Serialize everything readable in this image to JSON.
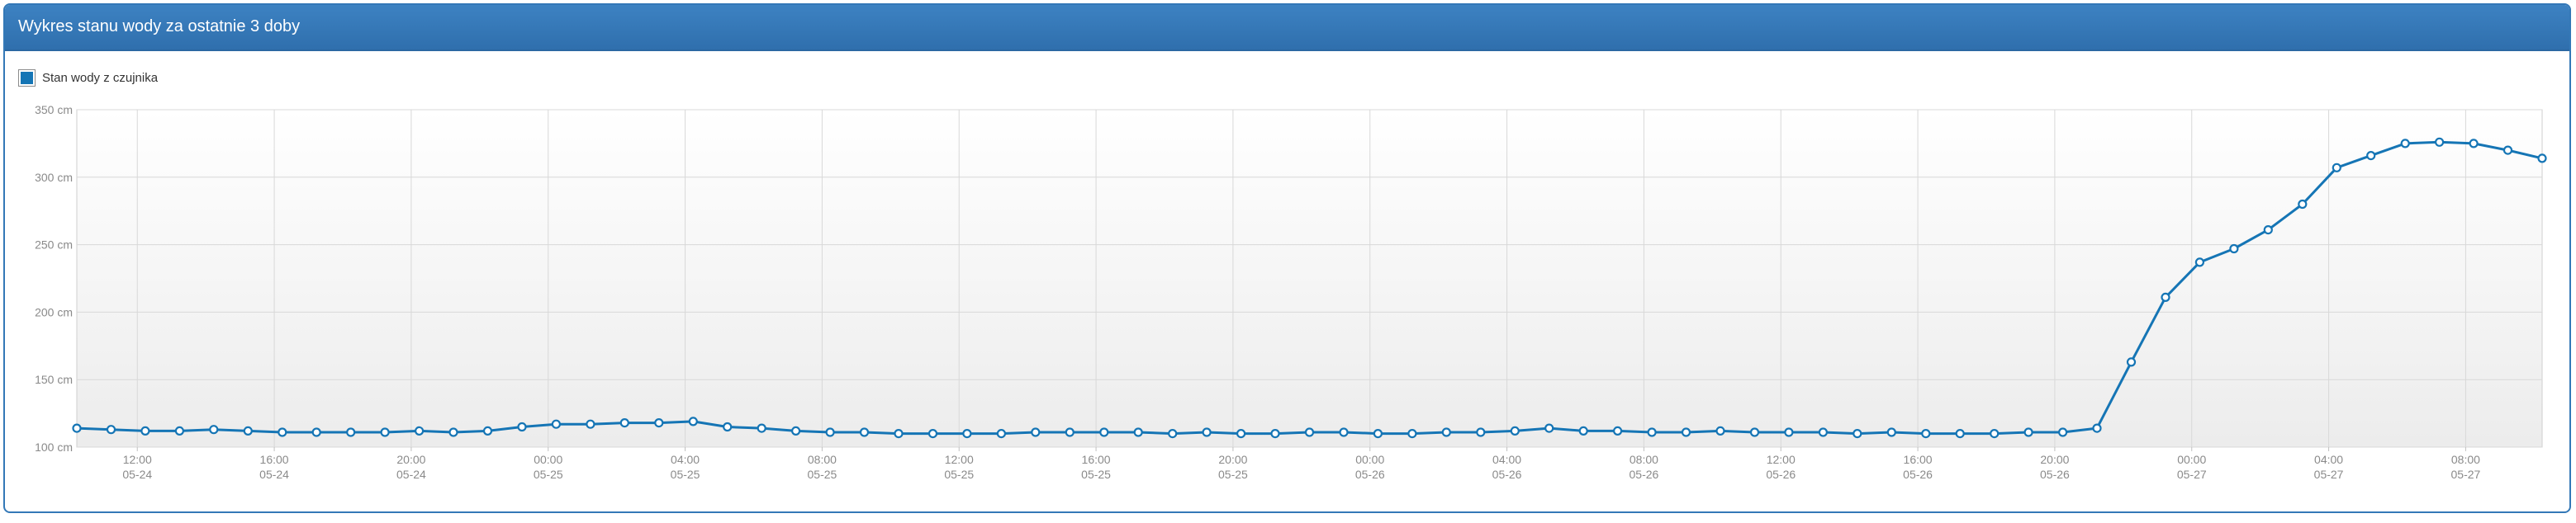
{
  "panel": {
    "title": "Wykres stanu wody za ostatnie 3 doby"
  },
  "colors": {
    "header": "#3378b7",
    "series": "#1575b5",
    "grid": "#d8d8d8"
  },
  "chart_data": {
    "type": "line",
    "title": "",
    "xlabel": "",
    "ylabel": "",
    "unit": "cm",
    "ylim": [
      100,
      350
    ],
    "y_ticks": [
      {
        "value": 100,
        "label": "100 cm"
      },
      {
        "value": 150,
        "label": "150 cm"
      },
      {
        "value": 200,
        "label": "200 cm"
      },
      {
        "value": 250,
        "label": "250 cm"
      },
      {
        "value": 300,
        "label": "300 cm"
      },
      {
        "value": 350,
        "label": "350 cm"
      }
    ],
    "x_range": [
      "2023-05-24 10:14",
      "2023-05-27 10:14"
    ],
    "x_ticks": [
      {
        "at": "2023-05-24 12:00",
        "time": "12:00",
        "date": "05-24"
      },
      {
        "at": "2023-05-24 16:00",
        "time": "16:00",
        "date": "05-24"
      },
      {
        "at": "2023-05-24 20:00",
        "time": "20:00",
        "date": "05-24"
      },
      {
        "at": "2023-05-25 00:00",
        "time": "00:00",
        "date": "05-25"
      },
      {
        "at": "2023-05-25 04:00",
        "time": "04:00",
        "date": "05-25"
      },
      {
        "at": "2023-05-25 08:00",
        "time": "08:00",
        "date": "05-25"
      },
      {
        "at": "2023-05-25 12:00",
        "time": "12:00",
        "date": "05-25"
      },
      {
        "at": "2023-05-25 16:00",
        "time": "16:00",
        "date": "05-25"
      },
      {
        "at": "2023-05-25 20:00",
        "time": "20:00",
        "date": "05-25"
      },
      {
        "at": "2023-05-26 00:00",
        "time": "00:00",
        "date": "05-26"
      },
      {
        "at": "2023-05-26 04:00",
        "time": "04:00",
        "date": "05-26"
      },
      {
        "at": "2023-05-26 08:00",
        "time": "08:00",
        "date": "05-26"
      },
      {
        "at": "2023-05-26 12:00",
        "time": "12:00",
        "date": "05-26"
      },
      {
        "at": "2023-05-26 16:00",
        "time": "16:00",
        "date": "05-26"
      },
      {
        "at": "2023-05-26 20:00",
        "time": "20:00",
        "date": "05-26"
      },
      {
        "at": "2023-05-27 00:00",
        "time": "00:00",
        "date": "05-27"
      },
      {
        "at": "2023-05-27 04:00",
        "time": "04:00",
        "date": "05-27"
      },
      {
        "at": "2023-05-27 08:00",
        "time": "08:00",
        "date": "05-27"
      }
    ],
    "grid": true,
    "legend_position": "top-left",
    "series": [
      {
        "name": "Stan wody z czujnika",
        "x_start": "2023-05-24 10:14",
        "x_step_minutes": 60,
        "values": [
          114,
          113,
          112,
          112,
          113,
          112,
          111,
          111,
          111,
          111,
          112,
          111,
          112,
          115,
          117,
          117,
          118,
          118,
          119,
          115,
          114,
          112,
          111,
          111,
          110,
          110,
          110,
          110,
          111,
          111,
          111,
          111,
          110,
          111,
          110,
          110,
          111,
          111,
          110,
          110,
          111,
          111,
          112,
          114,
          112,
          112,
          111,
          111,
          112,
          111,
          111,
          111,
          110,
          111,
          110,
          110,
          110,
          111,
          111,
          114,
          163,
          211,
          237,
          247,
          261,
          280,
          307,
          316,
          325,
          326,
          325,
          320,
          314
        ]
      }
    ]
  }
}
